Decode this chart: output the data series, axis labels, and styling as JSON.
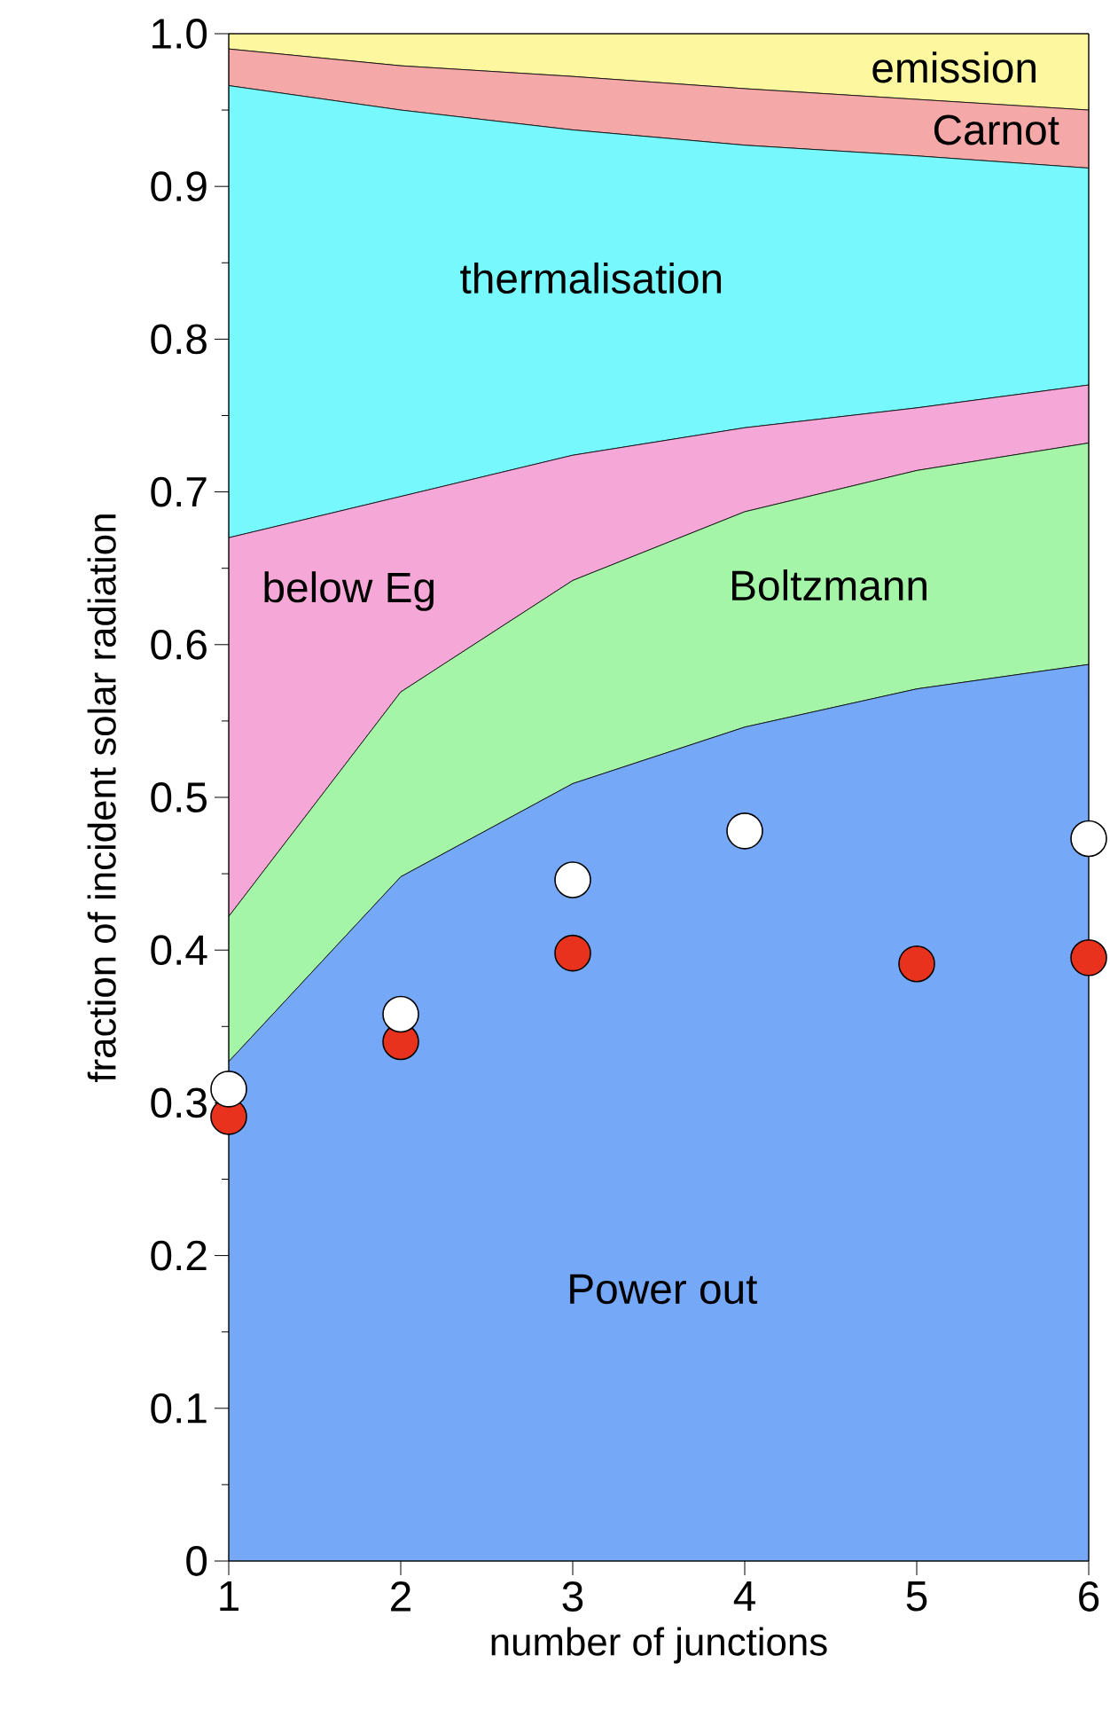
{
  "chart_data": {
    "type": "area",
    "stacked": true,
    "xlabel": "number of junctions",
    "ylabel": "fraction of incident solar radiation",
    "x": [
      1,
      2,
      3,
      4,
      5,
      6
    ],
    "xlim": [
      1,
      6
    ],
    "xticks": [
      1,
      2,
      3,
      4,
      5,
      6
    ],
    "ylim": [
      0,
      1
    ],
    "yticks": [
      0,
      {
        "value": 0.05,
        "label": null
      },
      0.1,
      {
        "value": 0.15,
        "label": null
      },
      0.2,
      {
        "value": 0.25,
        "label": null
      },
      0.3,
      {
        "value": 0.35,
        "label": null
      },
      0.4,
      {
        "value": 0.45,
        "label": null
      },
      0.5,
      {
        "value": 0.55,
        "label": null
      },
      0.6,
      {
        "value": 0.65,
        "label": null
      },
      0.7,
      {
        "value": 0.75,
        "label": null
      },
      0.8,
      {
        "value": 0.85,
        "label": null
      },
      0.9,
      {
        "value": 0.95,
        "label": null
      },
      {
        "value": 1,
        "label": "1.0"
      }
    ],
    "series": [
      {
        "name": "Power out",
        "color": "#76a8f8",
        "values": [
          0.327,
          0.448,
          0.509,
          0.546,
          0.571,
          0.587
        ]
      },
      {
        "name": "Boltzmann",
        "color": "#a5f5a8",
        "values": [
          0.095,
          0.121,
          0.133,
          0.141,
          0.143,
          0.145
        ]
      },
      {
        "name": "below Eg",
        "color": "#f5a8d8",
        "values": [
          0.248,
          0.128,
          0.082,
          0.055,
          0.041,
          0.038
        ]
      },
      {
        "name": "thermalisation",
        "color": "#76f8fc",
        "values": [
          0.296,
          0.253,
          0.213,
          0.185,
          0.165,
          0.142
        ]
      },
      {
        "name": "Carnot",
        "color": "#f4a8a8",
        "values": [
          0.024,
          0.029,
          0.035,
          0.037,
          0.037,
          0.038
        ]
      },
      {
        "name": "emission",
        "color": "#fdf8a0",
        "values": [
          0.01,
          0.021,
          0.028,
          0.036,
          0.043,
          0.05
        ]
      },
      {
        "type": "scatter",
        "color": "#e8321e",
        "marker": "circle",
        "values": [
          0.291,
          0.34,
          0.398,
          null,
          0.391,
          0.395
        ]
      },
      {
        "type": "scatter",
        "color": "#ffffff",
        "marker": "circle",
        "values": [
          0.309,
          0.358,
          0.446,
          0.478,
          null,
          0.473
        ]
      }
    ]
  }
}
